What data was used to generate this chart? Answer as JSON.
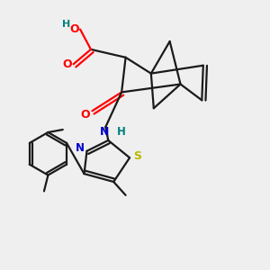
{
  "background_color": "#efefef",
  "bond_color": "#1a1a1a",
  "colors": {
    "O": "#ff0000",
    "N": "#0000cd",
    "S": "#cccc00",
    "H_label": "#008080",
    "C": "#1a1a1a"
  },
  "figsize": [
    3.0,
    3.0
  ],
  "dpi": 100
}
